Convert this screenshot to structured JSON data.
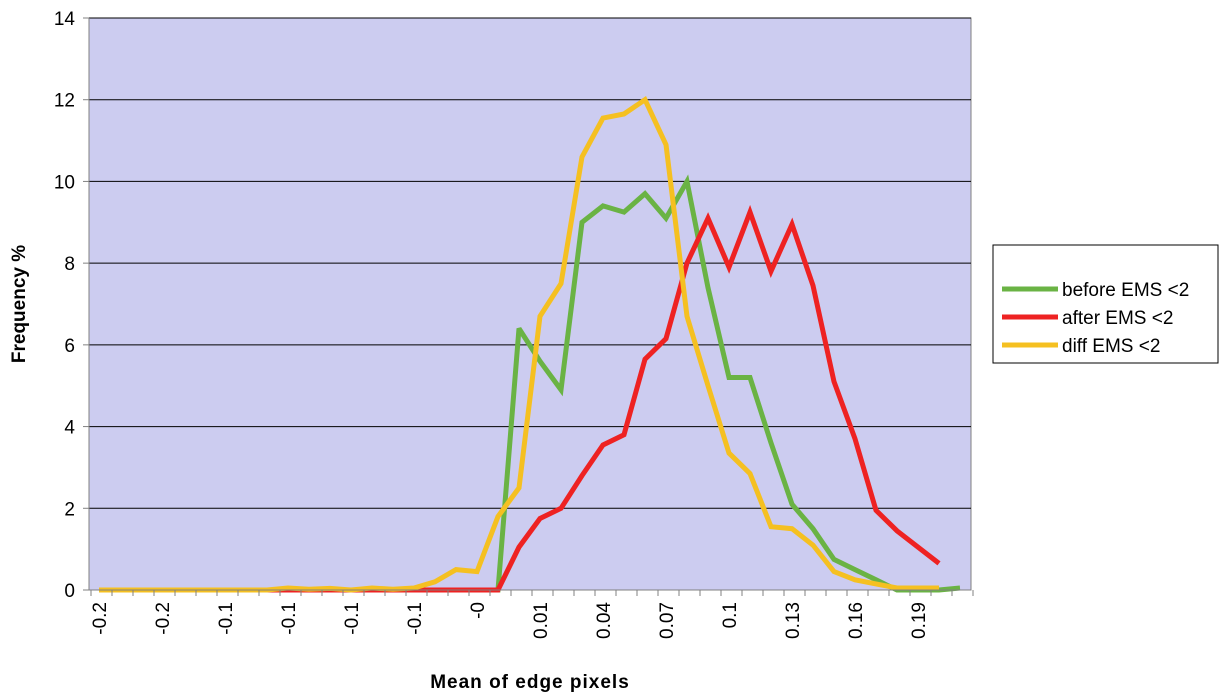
{
  "chart_data": {
    "type": "line",
    "title": "",
    "xlabel": "Mean of edge pixels",
    "ylabel": "Frequency %",
    "ylim": [
      0,
      14
    ],
    "yticks": [
      0,
      2,
      4,
      6,
      8,
      10,
      12,
      14
    ],
    "x_tick_labels": [
      "-0.2",
      "-0.2",
      "-0.1",
      "-0.1",
      "-0.1",
      "-0.1",
      "-0",
      "0.01",
      "0.04",
      "0.07",
      "0.1",
      "0.13",
      "0.16",
      "0.19"
    ],
    "grid": true,
    "legend_position": "right",
    "plot_background": "#ccccf0",
    "series": [
      {
        "name": "before EMS <2",
        "color": "#6ab344",
        "values": [
          0,
          0,
          0,
          0,
          0,
          0,
          0,
          0,
          0,
          0,
          0,
          0,
          0,
          0,
          0,
          0,
          0,
          0,
          0,
          0,
          6.4,
          5.6,
          4.9,
          9.0,
          9.4,
          9.25,
          9.7,
          9.1,
          10.0,
          7.4,
          5.2,
          5.2,
          3.6,
          2.1,
          1.5,
          0.75,
          0.5,
          0.25,
          0.0,
          0.0,
          0.0,
          0.05
        ]
      },
      {
        "name": "after EMS <2",
        "color": "#ee2222",
        "values": [
          0,
          0,
          0,
          0,
          0,
          0,
          0,
          0,
          0,
          0,
          0,
          0,
          0,
          0,
          0,
          0,
          0,
          0,
          0,
          0,
          1.05,
          1.75,
          2.0,
          2.8,
          3.55,
          3.8,
          5.65,
          6.15,
          8.0,
          9.1,
          7.9,
          9.25,
          7.8,
          8.95,
          7.45,
          5.1,
          3.7,
          1.95,
          1.45,
          1.05,
          0.65,
          null
        ]
      },
      {
        "name": "diff EMS <2",
        "color": "#f5c021",
        "values": [
          0,
          0,
          0,
          0,
          0,
          0,
          0,
          0,
          0,
          0.05,
          0.02,
          0.04,
          0.0,
          0.05,
          0.02,
          0.05,
          0.2,
          0.5,
          0.45,
          1.8,
          2.5,
          6.7,
          7.5,
          10.6,
          11.55,
          11.65,
          12.0,
          10.9,
          6.7,
          5.0,
          3.35,
          2.85,
          1.55,
          1.5,
          1.1,
          0.45,
          0.25,
          0.15,
          0.05,
          0.05,
          0.05,
          null
        ]
      }
    ]
  }
}
